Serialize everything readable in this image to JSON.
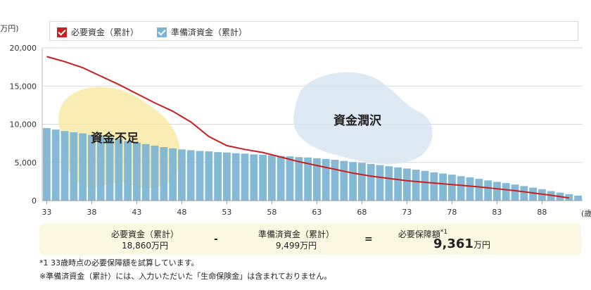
{
  "legend": {
    "required_label": "必要資金（累計）",
    "prepared_label": "準備済資金（累計）"
  },
  "axis": {
    "y_unit": "(万円)",
    "x_unit": "(歳)"
  },
  "annotations": {
    "shortfall": "資金不足",
    "surplus": "資金潤沢"
  },
  "summary": {
    "required_label": "必要資金（累計）",
    "required_value": "18,860万円",
    "minus": "-",
    "prepared_label": "準備済資金（累計）",
    "prepared_value": "9,499万円",
    "equals": "=",
    "result_label": "必要保障額",
    "result_footnote": "*1",
    "result_number": "9,361",
    "result_unit": "万円"
  },
  "notes": {
    "note1": "*1 33歳時点の必要保障額を試算しています。",
    "note2": "※準備済資金（累計）には、入力いただいた「生命保険金」は含まれておりません。"
  },
  "colors": {
    "line": "#cc1e1e",
    "bar": "#7bb4d4",
    "shortfall_blob": "#f8e79a",
    "surplus_blob": "#d7e6f1",
    "grid": "#d9d9d9"
  },
  "chart_data": {
    "type": "bar",
    "x_tick_labels": [
      "33",
      "38",
      "43",
      "48",
      "53",
      "58",
      "63",
      "68",
      "73",
      "78",
      "83",
      "88"
    ],
    "y_tick_labels": [
      "0",
      "5,000",
      "10,000",
      "15,000",
      "20,000"
    ],
    "ylim": [
      0,
      20000
    ],
    "xlim": [
      33,
      92
    ],
    "series": [
      {
        "name": "準備済資金（累計）",
        "type": "bar",
        "x": [
          33,
          34,
          35,
          36,
          37,
          38,
          39,
          40,
          41,
          42,
          43,
          44,
          45,
          46,
          47,
          48,
          49,
          50,
          51,
          52,
          53,
          54,
          55,
          56,
          57,
          58,
          59,
          60,
          61,
          62,
          63,
          64,
          65,
          66,
          67,
          68,
          69,
          70,
          71,
          72,
          73,
          74,
          75,
          76,
          77,
          78,
          79,
          80,
          81,
          82,
          83,
          84,
          85,
          86,
          87,
          88,
          89,
          90,
          91,
          92
        ],
        "values": [
          9499,
          9300,
          9100,
          8950,
          8800,
          8600,
          8450,
          8250,
          8050,
          7800,
          7600,
          7400,
          7200,
          7000,
          6850,
          6700,
          6600,
          6500,
          6450,
          6350,
          6300,
          6200,
          6150,
          6050,
          6000,
          5950,
          5850,
          5800,
          5700,
          5650,
          5550,
          5450,
          5350,
          5200,
          5050,
          4950,
          4800,
          4650,
          4500,
          4350,
          4200,
          4050,
          3900,
          3700,
          3550,
          3400,
          3200,
          3050,
          2850,
          2650,
          2450,
          2300,
          2100,
          1900,
          1700,
          1500,
          1250,
          1050,
          850,
          650
        ]
      },
      {
        "name": "必要資金（累計）",
        "type": "line",
        "x": [
          33,
          35,
          37,
          39,
          41,
          43,
          45,
          47,
          49,
          51,
          53,
          55,
          57,
          59,
          61,
          63,
          65,
          67,
          69,
          71,
          73,
          75,
          77,
          79,
          81,
          83,
          85,
          87,
          89,
          91
        ],
        "values": [
          18860,
          18200,
          17400,
          16300,
          15200,
          14000,
          12800,
          11700,
          10300,
          8400,
          7200,
          6700,
          6300,
          5700,
          5100,
          4600,
          4100,
          3600,
          3200,
          2900,
          2600,
          2400,
          2200,
          2000,
          1800,
          1550,
          1300,
          1000,
          700,
          350
        ]
      }
    ]
  }
}
